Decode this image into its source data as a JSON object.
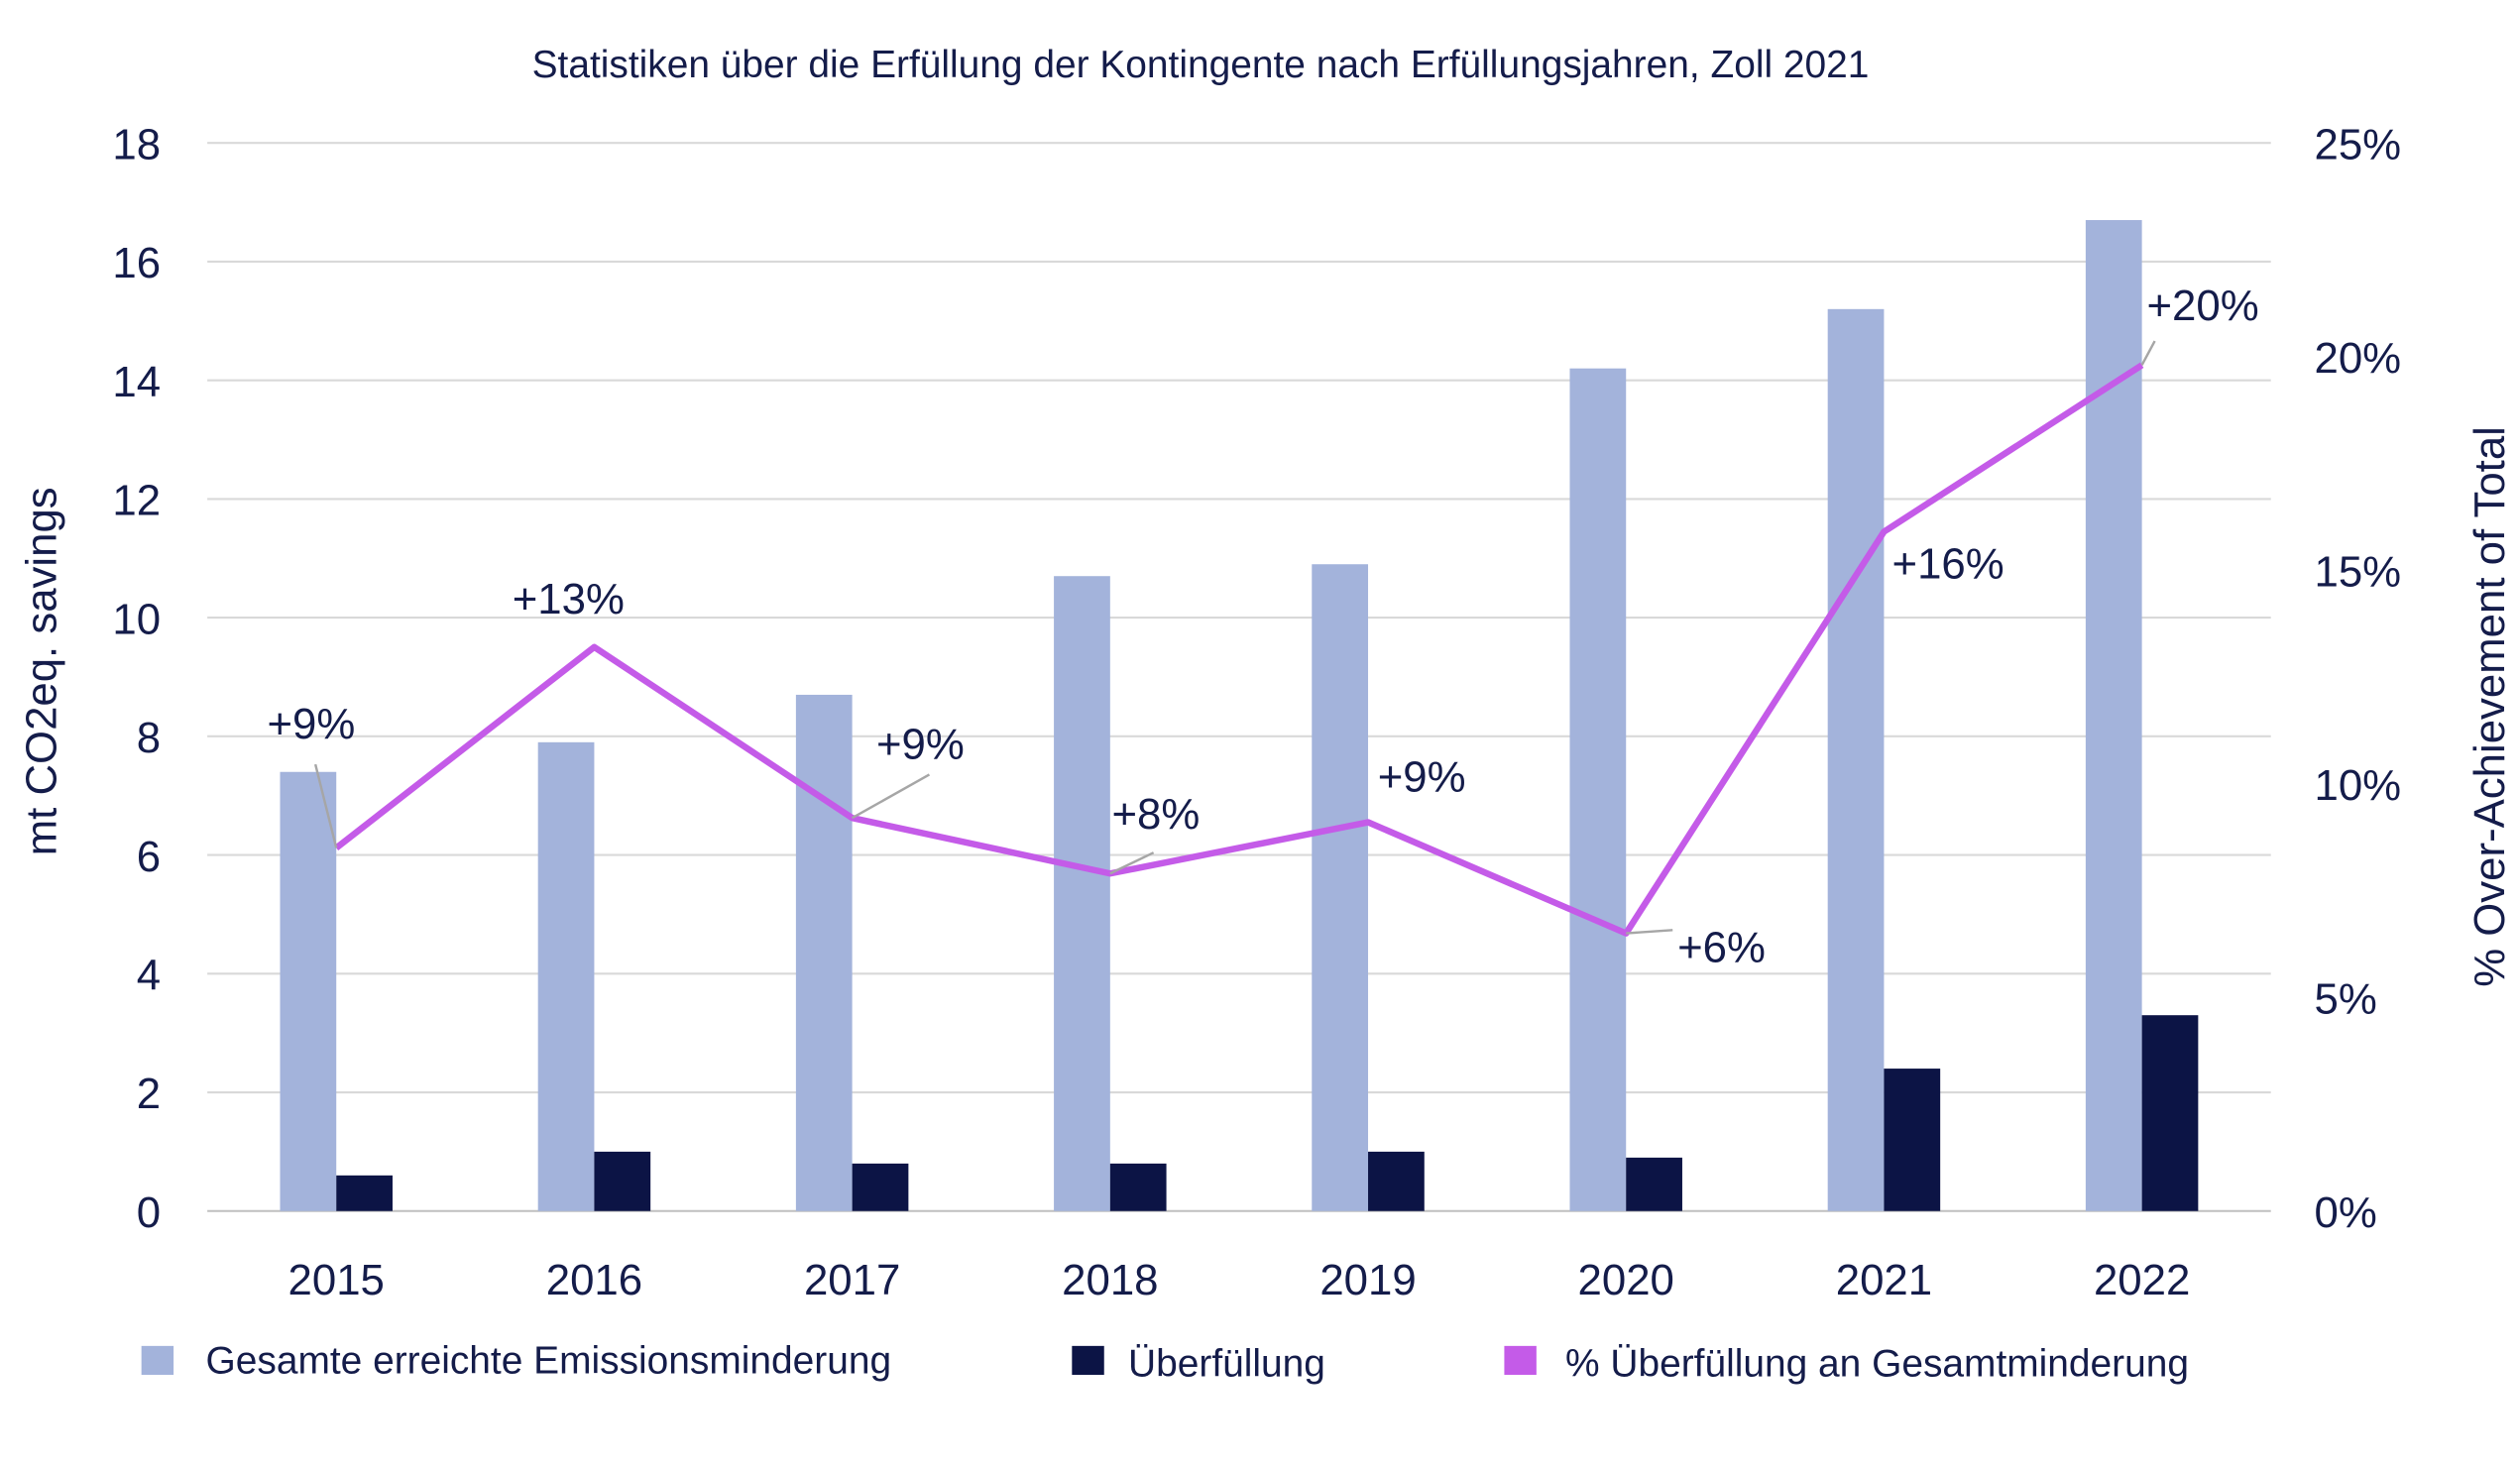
{
  "chart_data": {
    "type": "bar",
    "title": "Statistiken über die Erfüllung der Kontingente nach Erfüllungsjahren, Zoll 2021",
    "categories": [
      "2015",
      "2016",
      "2017",
      "2018",
      "2019",
      "2020",
      "2021",
      "2022"
    ],
    "ylabel": "mt CO2eq. savings",
    "ylabel_right": "% Over-Achievement of Total",
    "ylim": [
      0,
      18
    ],
    "yticks": [
      "0",
      "2",
      "4",
      "6",
      "8",
      "10",
      "12",
      "14",
      "16",
      "18"
    ],
    "ylim_right": [
      0,
      25
    ],
    "yticks_right": [
      "0%",
      "5%",
      "10%",
      "15%",
      "20%",
      "25%"
    ],
    "grid": true,
    "legend_position": "bottom",
    "series": [
      {
        "name": "Gesamte erreichte Emissionsminderung",
        "type": "bar",
        "axis": "left",
        "color": "#a3b3db",
        "values": [
          7.4,
          7.9,
          8.7,
          10.7,
          10.9,
          14.2,
          15.2,
          16.7
        ]
      },
      {
        "name": "Überfüllung",
        "type": "bar",
        "axis": "left",
        "color": "#0c1445",
        "values": [
          0.6,
          1.0,
          0.8,
          0.8,
          1.0,
          0.9,
          2.4,
          3.3
        ]
      },
      {
        "name": "% Überfüllung an Gesamtminderung",
        "type": "line",
        "axis": "right",
        "color": "#c45be8",
        "values": [
          8.5,
          13.2,
          9.2,
          7.9,
          9.1,
          6.5,
          15.9,
          19.8
        ],
        "data_labels": [
          "+9%",
          "+13%",
          "+9%",
          "+8%",
          "+9%",
          "+6%",
          "+16%",
          "+20%"
        ]
      }
    ]
  }
}
